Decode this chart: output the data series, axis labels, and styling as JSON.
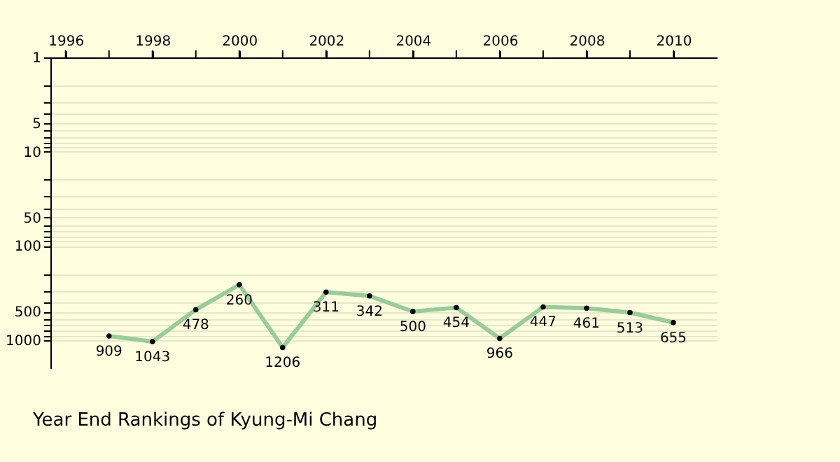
{
  "chart_data": {
    "type": "line",
    "title": "Year End Rankings of  Kyung-Mi Chang",
    "x": [
      1997,
      1998,
      1999,
      2000,
      2001,
      2002,
      2003,
      2004,
      2005,
      2006,
      2007,
      2008,
      2009,
      2010
    ],
    "series": [
      {
        "color": "#99cc99",
        "values": [
          909,
          1043,
          478,
          260,
          1206,
          311,
          342,
          500,
          454,
          966,
          447,
          461,
          513,
          655
        ]
      }
    ],
    "data_labels": true,
    "marker": "circle",
    "line_style": "solid",
    "grid": "y",
    "log": true,
    "legend": false,
    "xlim": [
      1995.65,
      2011
    ],
    "xticks": [
      1996,
      {
        "value": 1997,
        "label": null
      },
      1998,
      {
        "value": 1999,
        "label": null
      },
      2000,
      {
        "value": 2001,
        "label": null
      },
      2002,
      {
        "value": 2003,
        "label": null
      },
      2004,
      {
        "value": 2005,
        "label": null
      },
      2006,
      {
        "value": 2007,
        "label": null
      },
      2008,
      {
        "value": 2009,
        "label": null
      },
      2010
    ],
    "ylim": [
      2000,
      1
    ],
    "yticks": [
      1,
      {
        "value": 2,
        "label": null
      },
      {
        "value": 3,
        "label": null
      },
      {
        "value": 4,
        "label": null
      },
      5,
      {
        "value": 6,
        "label": null
      },
      {
        "value": 7,
        "label": null
      },
      {
        "value": 8,
        "label": null
      },
      {
        "value": 9,
        "label": null
      },
      10,
      {
        "value": 20,
        "label": null
      },
      {
        "value": 30,
        "label": null
      },
      {
        "value": 40,
        "label": null
      },
      50,
      {
        "value": 60,
        "label": null
      },
      {
        "value": 70,
        "label": null
      },
      {
        "value": 80,
        "label": null
      },
      {
        "value": 90,
        "label": null
      },
      100,
      {
        "value": 200,
        "label": null
      },
      {
        "value": 300,
        "label": null
      },
      {
        "value": 400,
        "label": null
      },
      500,
      {
        "value": 600,
        "label": null
      },
      {
        "value": 700,
        "label": null
      },
      {
        "value": 800,
        "label": null
      },
      {
        "value": 900,
        "label": null
      },
      1000
    ]
  }
}
